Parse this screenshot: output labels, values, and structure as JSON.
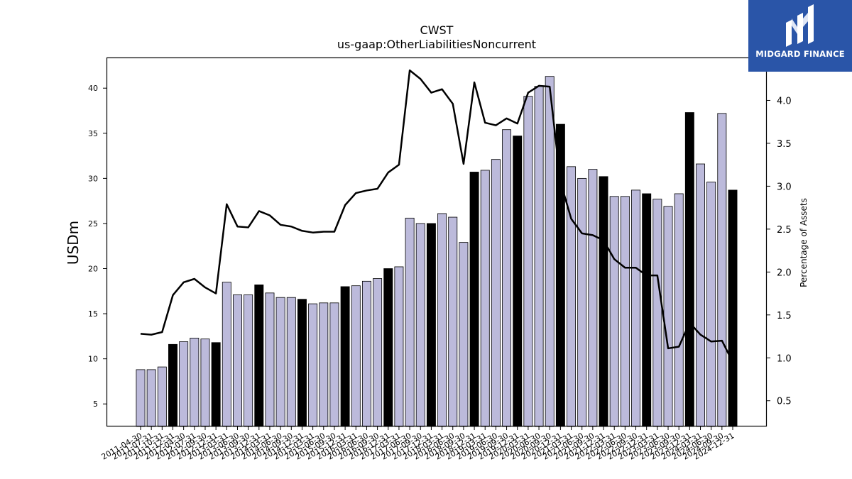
{
  "logo": {
    "text": "MIDGARD FINANCE",
    "bg": "#2a55a8"
  },
  "chart_data": {
    "type": "bar",
    "title": "CWST",
    "subtitle": "us-gaap:OtherLiabilitiesNoncurrent",
    "ylabel": "USDm",
    "y2label": "Percentage of Assets",
    "ylim": [
      2.5,
      43.4
    ],
    "y2lim": [
      0.2,
      4.5
    ],
    "yticks": [
      5,
      10,
      15,
      20,
      25,
      30,
      35,
      40
    ],
    "y2ticks": [
      0.5,
      1.0,
      1.5,
      2.0,
      2.5,
      3.0,
      3.5,
      4.0
    ],
    "colors": {
      "regular": "#bcbadb",
      "year_end": "#000000",
      "line": "#000000"
    },
    "categories": [
      "2011-04-30",
      "2011-07-31",
      "2011-10-31",
      "2011-12-31",
      "2012-04-30",
      "2012-07-31",
      "2012-09-30",
      "2012-12-31",
      "2013-03-31",
      "2013-06-30",
      "2013-09-30",
      "2013-12-31",
      "2014-03-31",
      "2014-06-30",
      "2014-09-30",
      "2014-12-31",
      "2015-03-31",
      "2015-06-30",
      "2015-09-30",
      "2015-12-31",
      "2016-03-31",
      "2016-06-30",
      "2016-09-30",
      "2016-12-31",
      "2017-03-31",
      "2017-06-30",
      "2017-09-30",
      "2017-12-31",
      "2018-03-31",
      "2018-06-30",
      "2018-09-30",
      "2018-12-31",
      "2019-03-31",
      "2019-06-30",
      "2019-09-30",
      "2019-12-31",
      "2020-03-31",
      "2020-06-30",
      "2020-09-30",
      "2020-12-31",
      "2021-03-31",
      "2021-06-30",
      "2021-09-30",
      "2021-12-31",
      "2022-03-31",
      "2022-06-30",
      "2022-09-30",
      "2022-12-31",
      "2023-03-31",
      "2023-06-30",
      "2023-09-30",
      "2023-12-31",
      "2024-03-31",
      "2024-06-30",
      "2024-09-30",
      "2024-12-31"
    ],
    "xtick_labels": [
      "2011-04-30",
      "2011-07-31",
      "2011-10-31",
      "2011-12-31",
      "2012-04-30",
      "2012-07-31",
      "2012-09-30",
      "2012-12-31",
      "2013-03-31",
      "2013-06-30",
      "2013-09-30",
      "2013-12-31",
      "2014-03-31",
      "2014-06-30",
      "2014-09-30",
      "2014-12-31",
      "2015-03-31",
      "2015-06-30",
      "2015-09-30",
      "2015-12-31",
      "2016-03-31",
      "2016-06-30",
      "2016-09-30",
      "2016-12-31",
      "2017-03-31",
      "2017-06-30",
      "2017-09-30",
      "2017-12-31",
      "2018-03-31",
      "2018-06-30",
      "2018-09-30",
      "2018-12-31",
      "2019-03-31",
      "2019-06-30",
      "2019-09-30",
      "2019-12-31",
      "2020-03-31",
      "2020-06-30",
      "2020-09-30",
      "2020-12-31",
      "2021-03-31",
      "2021-06-30",
      "2021-09-30",
      "2021-12-31",
      "2022-03-31",
      "2022-06-30",
      "2022-09-30",
      "2022-12-31",
      "2023-03-31",
      "2023-06-30",
      "2023-09-30",
      "2023-12-31",
      "2024-03-31",
      "2024-06-30",
      "2024-09-30",
      "2024-12-31"
    ],
    "series": [
      {
        "values": [
          8.8,
          8.8,
          9.1,
          11.6,
          11.9,
          12.3,
          12.2,
          11.8,
          18.5,
          17.1,
          17.1,
          18.2,
          17.3,
          16.8,
          16.8,
          16.6,
          16.1,
          16.2,
          16.2,
          18.0,
          18.1,
          18.6,
          18.9,
          20.0,
          20.2,
          25.6,
          25.0,
          25.0,
          26.1,
          25.7,
          22.9,
          30.7,
          30.9,
          32.1,
          35.4,
          34.7,
          39.1,
          40.2,
          41.3,
          36.0,
          31.3,
          30.0,
          31.0,
          30.2,
          28.0,
          28.0,
          28.7,
          28.3,
          27.7,
          26.9,
          28.3,
          37.3,
          31.6,
          29.6,
          37.2,
          28.7
        ]
      },
      {
        "axis": "right",
        "values": [
          1.28,
          1.27,
          1.3,
          1.73,
          1.88,
          1.92,
          1.82,
          1.75,
          2.79,
          2.53,
          2.52,
          2.71,
          2.66,
          2.55,
          2.53,
          2.48,
          2.46,
          2.47,
          2.47,
          2.78,
          2.92,
          2.95,
          2.97,
          3.16,
          3.25,
          4.35,
          4.25,
          4.09,
          4.13,
          3.96,
          3.26,
          4.21,
          3.74,
          3.71,
          3.79,
          3.73,
          4.09,
          4.17,
          4.16,
          3.05,
          2.62,
          2.45,
          2.43,
          2.37,
          2.15,
          2.05,
          2.05,
          1.96,
          1.96,
          1.11,
          1.13,
          1.41,
          1.27,
          1.19,
          1.2,
          0.95
        ]
      }
    ]
  }
}
